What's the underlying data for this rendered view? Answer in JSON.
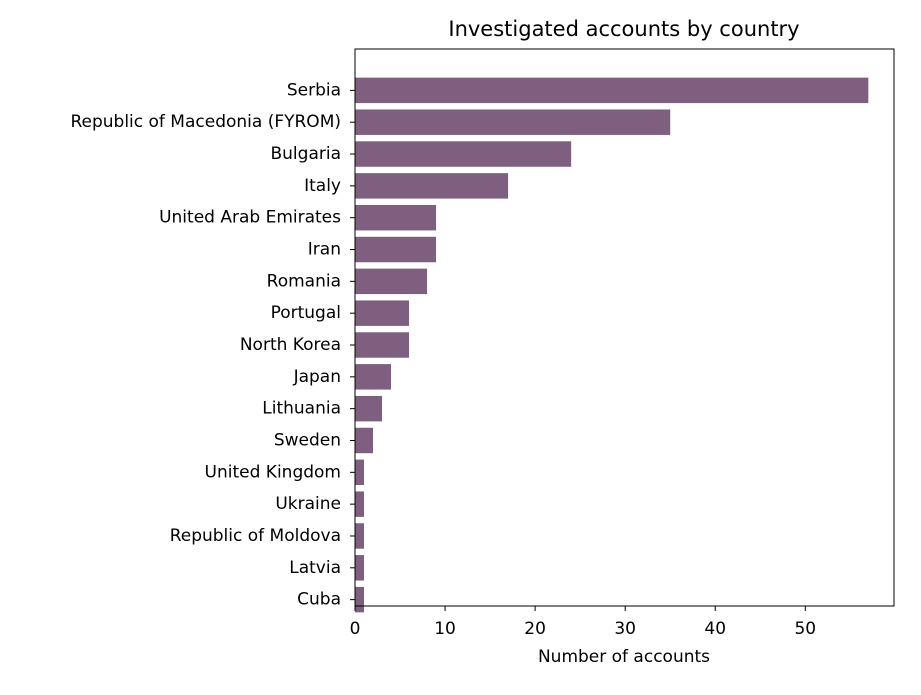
{
  "chart_data": {
    "type": "bar",
    "orientation": "horizontal",
    "title": "Investigated accounts by country",
    "x_label": "Number of accounts",
    "categories": [
      "Serbia",
      "Republic of Macedonia (FYROM)",
      "Bulgaria",
      "Italy",
      "United Arab Emirates",
      "Iran",
      "Romania",
      "Portugal",
      "North Korea",
      "Japan",
      "Lithuania",
      "Sweden",
      "United Kingdom",
      "Ukraine",
      "Republic of Moldova",
      "Latvia",
      "Cuba"
    ],
    "values": [
      57,
      35,
      24,
      17,
      9,
      9,
      8,
      6,
      6,
      4,
      3,
      2,
      1,
      1,
      1,
      1,
      1
    ],
    "color": "#7f5f7f",
    "xlim": [
      0,
      59.85
    ],
    "xticks": [
      0,
      10,
      20,
      30,
      40,
      50
    ],
    "grid": false
  }
}
